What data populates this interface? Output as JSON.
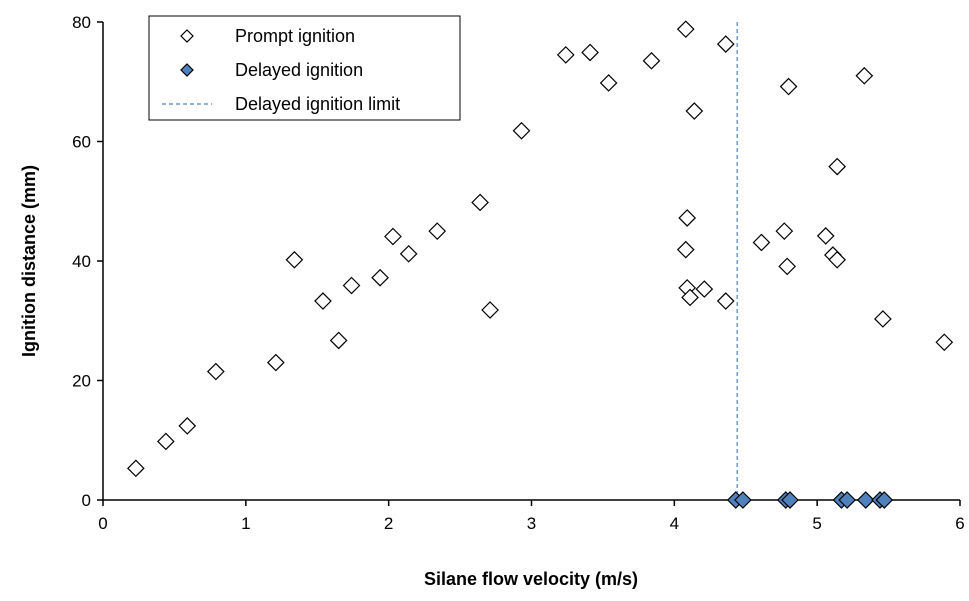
{
  "chart_data": {
    "type": "scatter",
    "title": "",
    "xlabel": "Silane flow velocity (m/s)",
    "ylabel": "Ignition distance (mm)",
    "xlim": [
      0,
      6
    ],
    "ylim": [
      0,
      80
    ],
    "xticks": [
      "0",
      "1",
      "2",
      "3",
      "4",
      "5",
      "6"
    ],
    "yticks": [
      "0",
      "20",
      "40",
      "60",
      "80"
    ],
    "grid": false,
    "legend_position": "top-left",
    "series": [
      {
        "name": "Prompt ignition",
        "marker": "open-diamond",
        "color": "#000000",
        "fill": "#ffffff",
        "points": [
          [
            0.23,
            5.3
          ],
          [
            0.44,
            9.8
          ],
          [
            0.59,
            12.4
          ],
          [
            0.79,
            21.5
          ],
          [
            1.21,
            23.0
          ],
          [
            1.34,
            40.2
          ],
          [
            1.54,
            33.3
          ],
          [
            1.65,
            26.7
          ],
          [
            1.74,
            35.9
          ],
          [
            1.94,
            37.2
          ],
          [
            2.03,
            44.1
          ],
          [
            2.14,
            41.2
          ],
          [
            2.34,
            45.0
          ],
          [
            2.64,
            49.8
          ],
          [
            2.71,
            31.8
          ],
          [
            2.93,
            61.8
          ],
          [
            3.24,
            74.5
          ],
          [
            3.41,
            74.9
          ],
          [
            3.54,
            69.8
          ],
          [
            3.84,
            73.5
          ],
          [
            4.08,
            78.8
          ],
          [
            4.09,
            47.2
          ],
          [
            4.08,
            41.9
          ],
          [
            4.09,
            35.5
          ],
          [
            4.11,
            33.9
          ],
          [
            4.14,
            65.1
          ],
          [
            4.21,
            35.3
          ],
          [
            4.36,
            33.3
          ],
          [
            4.36,
            76.3
          ],
          [
            4.61,
            43.1
          ],
          [
            4.77,
            45.0
          ],
          [
            4.79,
            39.1
          ],
          [
            4.8,
            69.2
          ],
          [
            5.06,
            44.2
          ],
          [
            5.11,
            41.0
          ],
          [
            5.14,
            40.2
          ],
          [
            5.14,
            55.8
          ],
          [
            5.33,
            71.0
          ],
          [
            5.46,
            30.3
          ],
          [
            5.89,
            26.4
          ]
        ]
      },
      {
        "name": "Delayed ignition",
        "marker": "filled-diamond",
        "color": "#000000",
        "fill": "#4f81bd",
        "points": [
          [
            4.43,
            0
          ],
          [
            4.48,
            0
          ],
          [
            4.78,
            0
          ],
          [
            4.81,
            0
          ],
          [
            5.17,
            0
          ],
          [
            5.21,
            0
          ],
          [
            5.34,
            0
          ],
          [
            5.44,
            0
          ],
          [
            5.47,
            0
          ]
        ]
      },
      {
        "name": "Delayed ignition  limit",
        "type": "vertical-line",
        "style": "dashed",
        "color": "#4f81bd",
        "x": 4.44
      }
    ]
  }
}
